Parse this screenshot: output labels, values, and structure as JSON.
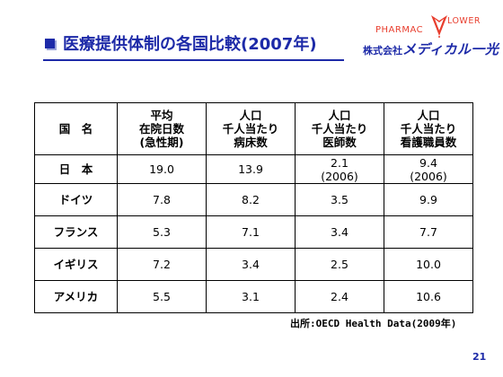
{
  "title": "医療提供体制の各国比較(2007年)",
  "logo": {
    "left": "PHARMAC",
    "right": "LOWER"
  },
  "company": {
    "prefix": "株式会社",
    "brand": "メディカル一光"
  },
  "table": {
    "headers": [
      [
        "国　名"
      ],
      [
        "平均",
        "在院日数",
        "(急性期)"
      ],
      [
        "人口",
        "千人当たり",
        "病床数"
      ],
      [
        "人口",
        "千人当たり",
        "医師数"
      ],
      [
        "人口",
        "千人当たり",
        "看護職員数"
      ]
    ],
    "rows": [
      {
        "country": "日　本",
        "values": [
          [
            "19.0"
          ],
          [
            "13.9"
          ],
          [
            "2.1",
            "(2006)"
          ],
          [
            "9.4",
            "(2006)"
          ]
        ]
      },
      {
        "country": "ドイツ",
        "values": [
          [
            "7.8"
          ],
          [
            "8.2"
          ],
          [
            "3.5"
          ],
          [
            "9.9"
          ]
        ]
      },
      {
        "country": "フランス",
        "values": [
          [
            "5.3"
          ],
          [
            "7.1"
          ],
          [
            "3.4"
          ],
          [
            "7.7"
          ]
        ]
      },
      {
        "country": "イギリス",
        "values": [
          [
            "7.2"
          ],
          [
            "3.4"
          ],
          [
            "2.5"
          ],
          [
            "10.0"
          ]
        ]
      },
      {
        "country": "アメリカ",
        "values": [
          [
            "5.5"
          ],
          [
            "3.1"
          ],
          [
            "2.4"
          ],
          [
            "10.6"
          ]
        ]
      }
    ]
  },
  "source": "出所:OECD Health Data(2009年)",
  "page_number": "21",
  "colors": {
    "title_blue": "#1d2aa8",
    "logo_red": "#e83e2e"
  }
}
